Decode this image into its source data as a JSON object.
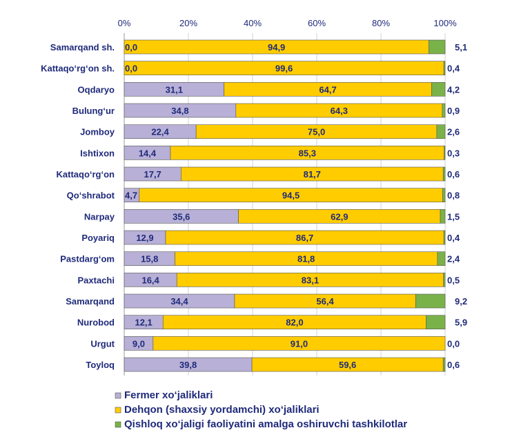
{
  "chart_data": {
    "type": "bar",
    "orientation": "horizontal",
    "stacked": "percent",
    "title": "",
    "xlabel": "",
    "ylabel": "",
    "xlim": [
      0,
      100
    ],
    "x_ticks": [
      "0%",
      "20%",
      "40%",
      "60%",
      "80%",
      "100%"
    ],
    "grid": true,
    "legend_position": "bottom-left",
    "categories": [
      "Samarqand sh.",
      "Kattaqo‘rg‘on sh.",
      "Oqdaryo",
      "Bulung‘ur",
      "Jomboy",
      "Ishtixon",
      "Kattaqo‘rg‘on",
      "Qo‘shrabot",
      "Narpay",
      "Poyariq",
      "Pastdarg‘om",
      "Paxtachi",
      "Samarqand",
      "Nurobod",
      "Urgut",
      "Toyloq"
    ],
    "series": [
      {
        "name": "Fermer xo‘jaliklari",
        "color": "#b8b0d6",
        "values": [
          0.0,
          0.0,
          31.1,
          34.8,
          22.4,
          14.4,
          17.7,
          4.7,
          35.6,
          12.9,
          15.8,
          16.4,
          34.4,
          12.1,
          9.0,
          39.8
        ],
        "labels": [
          "0,0",
          "0,0",
          "31,1",
          "34,8",
          "22,4",
          "14,4",
          "17,7",
          "4,7",
          "35,6",
          "12,9",
          "15,8",
          "16,4",
          "34,4",
          "12,1",
          "9,0",
          "39,8"
        ]
      },
      {
        "name": "Dehqon (shaxsiy yordamchi) xo‘jaliklari",
        "color": "#ffcc00",
        "values": [
          94.9,
          99.6,
          64.7,
          64.3,
          75.0,
          85.3,
          81.7,
          94.5,
          62.9,
          86.7,
          81.8,
          83.1,
          56.4,
          82.0,
          91.0,
          59.6
        ],
        "labels": [
          "94,9",
          "99,6",
          "64,7",
          "64,3",
          "75,0",
          "85,3",
          "81,7",
          "94,5",
          "62,9",
          "86,7",
          "81,8",
          "83,1",
          "56,4",
          "82,0",
          "91,0",
          "59,6"
        ]
      },
      {
        "name": "Qishloq xo‘jaligi faoliyatini amalga oshiruvchi tashkilotlar",
        "color": "#7ab24a",
        "values": [
          5.1,
          0.4,
          4.2,
          0.9,
          2.6,
          0.3,
          0.6,
          0.8,
          1.5,
          0.4,
          2.4,
          0.5,
          9.2,
          5.9,
          0.0,
          0.6
        ],
        "labels": [
          "5,1",
          "0,4",
          "4,2",
          "0,9",
          "2,6",
          "0,3",
          "0,6",
          "0,8",
          "1,5",
          "0,4",
          "2,4",
          "0,5",
          "9,2",
          "5,9",
          "0,0",
          "0,6"
        ]
      }
    ]
  }
}
